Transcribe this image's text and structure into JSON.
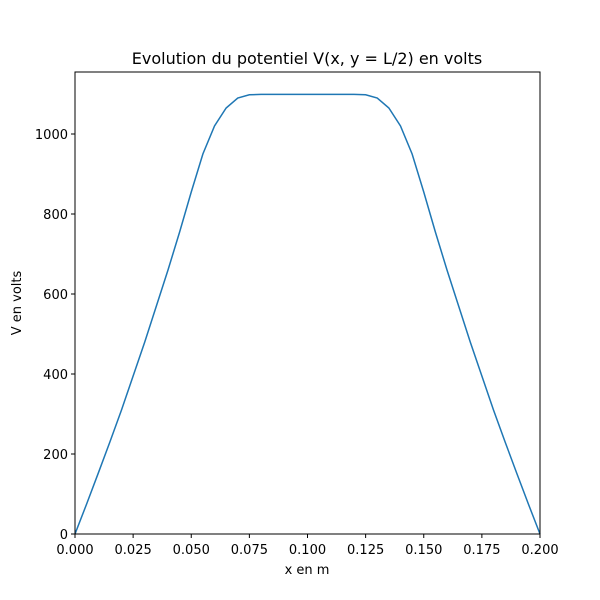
{
  "chart_data": {
    "type": "line",
    "title": "Evolution du potentiel V(x, y = L/2) en volts",
    "xlabel": "x en m",
    "ylabel": "V en volts",
    "x": [
      0,
      0.005,
      0.01,
      0.015,
      0.02,
      0.025,
      0.03,
      0.035,
      0.04,
      0.045,
      0.05,
      0.055,
      0.06,
      0.065,
      0.07,
      0.075,
      0.08,
      0.085,
      0.09,
      0.095,
      0.1,
      0.105,
      0.11,
      0.115,
      0.12,
      0.125,
      0.13,
      0.135,
      0.14,
      0.145,
      0.15,
      0.155,
      0.16,
      0.165,
      0.17,
      0.175,
      0.18,
      0.185,
      0.19,
      0.195,
      0.2
    ],
    "series": [
      {
        "color": "#1f77b4",
        "values": [
          0,
          75,
          152,
          230,
          310,
          395,
          480,
          570,
          660,
          755,
          855,
          950,
          1020,
          1065,
          1090,
          1098,
          1099,
          1099,
          1099,
          1099,
          1099,
          1099,
          1099,
          1099,
          1099,
          1098,
          1090,
          1065,
          1020,
          950,
          855,
          755,
          660,
          570,
          480,
          395,
          310,
          230,
          152,
          75,
          0
        ]
      }
    ],
    "xlim": [
      0,
      0.2
    ],
    "ylim": [
      0,
      1155
    ],
    "xticks": [
      {
        "value": 0,
        "label": "0.000"
      },
      {
        "value": 0.025,
        "label": "0.025"
      },
      {
        "value": 0.05,
        "label": "0.050"
      },
      {
        "value": 0.075,
        "label": "0.075"
      },
      {
        "value": 0.1,
        "label": "0.100"
      },
      {
        "value": 0.125,
        "label": "0.125"
      },
      {
        "value": 0.15,
        "label": "0.150"
      },
      {
        "value": 0.175,
        "label": "0.175"
      },
      {
        "value": 0.2,
        "label": "0.200"
      }
    ],
    "yticks": [
      0,
      200,
      400,
      600,
      800,
      1000
    ],
    "grid": false
  }
}
